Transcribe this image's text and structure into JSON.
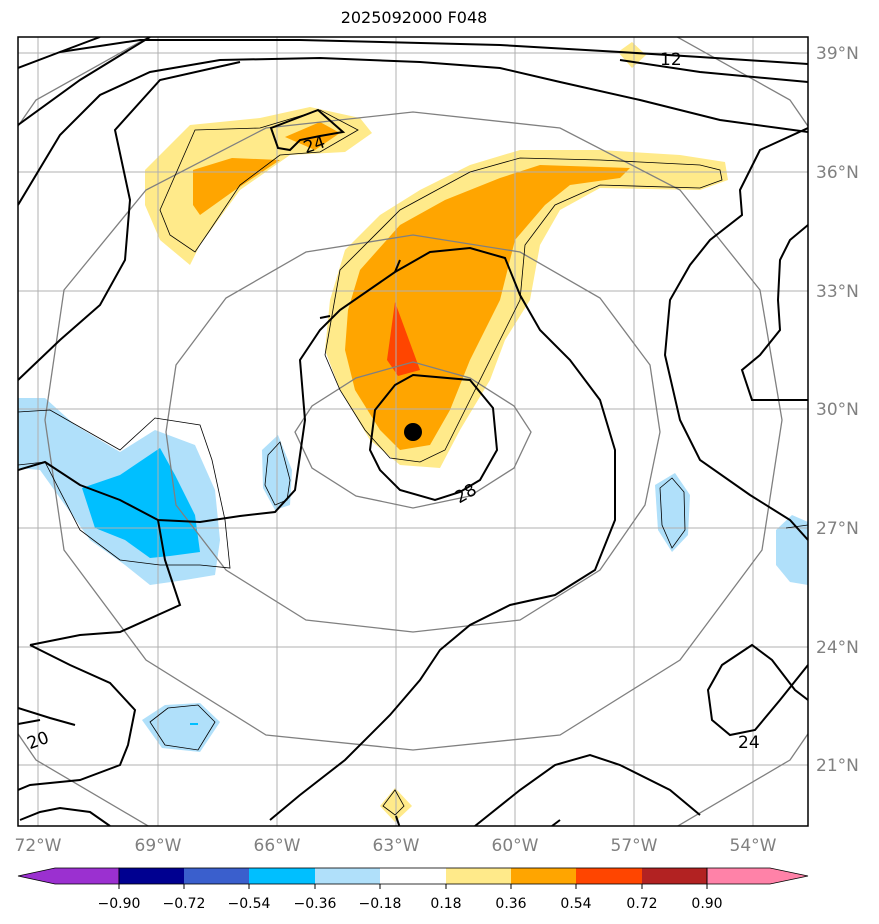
{
  "title": "2025092000 F048",
  "map": {
    "lon_ticks": [
      "72°W",
      "69°W",
      "66°W",
      "63°W",
      "60°W",
      "57°W",
      "54°W"
    ],
    "lat_ticks": [
      "39°N",
      "36°N",
      "33°N",
      "30°N",
      "27°N",
      "24°N",
      "21°N"
    ],
    "contour_labels": [
      "12",
      "24",
      "28",
      "20",
      "24"
    ],
    "storm_center": {
      "lon_label": "62.5°W",
      "lat_label": "29.5°N"
    }
  },
  "colorbar": {
    "ticks": [
      "−0.90",
      "−0.72",
      "−0.54",
      "−0.36",
      "−0.18",
      "0.18",
      "0.36",
      "0.54",
      "0.72",
      "0.90"
    ],
    "colors": [
      "#9b30d0",
      "#000090",
      "#3a5fcd",
      "#00bfff",
      "#b0e0fa",
      "#ffffff",
      "#ffea8a",
      "#ffa500",
      "#ff4500",
      "#b22222",
      "#ff82a8"
    ]
  },
  "fill_colors": {
    "light_yellow": "#ffea8a",
    "orange": "#ffa500",
    "red_orange": "#ff4500",
    "light_blue": "#b0e0fa",
    "deep_sky_blue": "#00bfff"
  }
}
